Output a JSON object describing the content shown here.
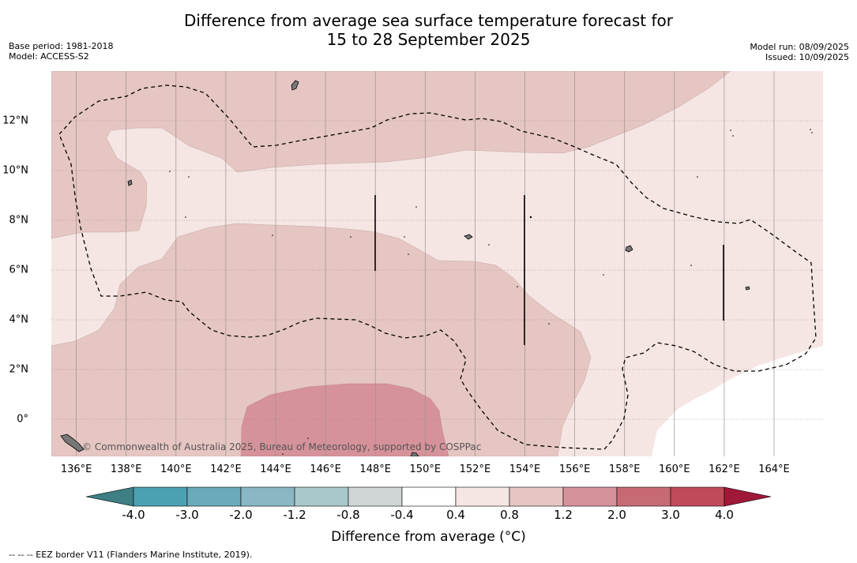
{
  "title_line1": "Difference from average sea surface temperature forecast for",
  "title_line2": "15 to 28 September 2025",
  "base_period": "Base period: 1981-2018",
  "model": "Model: ACCESS-S2",
  "model_run": "Model run: 08/09/2025",
  "issued": "Issued: 10/09/2025",
  "copyright": "© Commonwealth of Australia 2025, Bureau of Meteorology, supported by COSPPac",
  "footer": "-- -- -- EEZ border V11 (Flanders Marine Institute, 2019).",
  "x_ticks": [
    "136°E",
    "138°E",
    "140°E",
    "142°E",
    "144°E",
    "146°E",
    "148°E",
    "150°E",
    "152°E",
    "154°E",
    "156°E",
    "158°E",
    "160°E",
    "162°E",
    "164°E"
  ],
  "y_ticks": [
    "12°N",
    "10°N",
    "8°N",
    "6°N",
    "4°N",
    "2°N",
    "0°"
  ],
  "colorbar": {
    "title": "Difference from average (°C)",
    "labels": [
      "-4.0",
      "-3.0",
      "-2.0",
      "-1.2",
      "-0.8",
      "-0.4",
      "0.4",
      "0.8",
      "1.2",
      "2.0",
      "3.0",
      "4.0"
    ],
    "colors": [
      "#3d7f84",
      "#4ba1b2",
      "#6aaabb",
      "#8ab7c4",
      "#a9c8cb",
      "#cfd6d5",
      "#ffffff",
      "#f5e6e4",
      "#e6c6c2",
      "#d6929a",
      "#c86a74",
      "#c04a5a",
      "#a01838"
    ]
  },
  "shading_colors": {
    "band_04_08": "#f5e6e4",
    "band_08_12": "#e6c6c2",
    "band_12_20": "#d6929a",
    "neutral": "#ffffff"
  }
}
